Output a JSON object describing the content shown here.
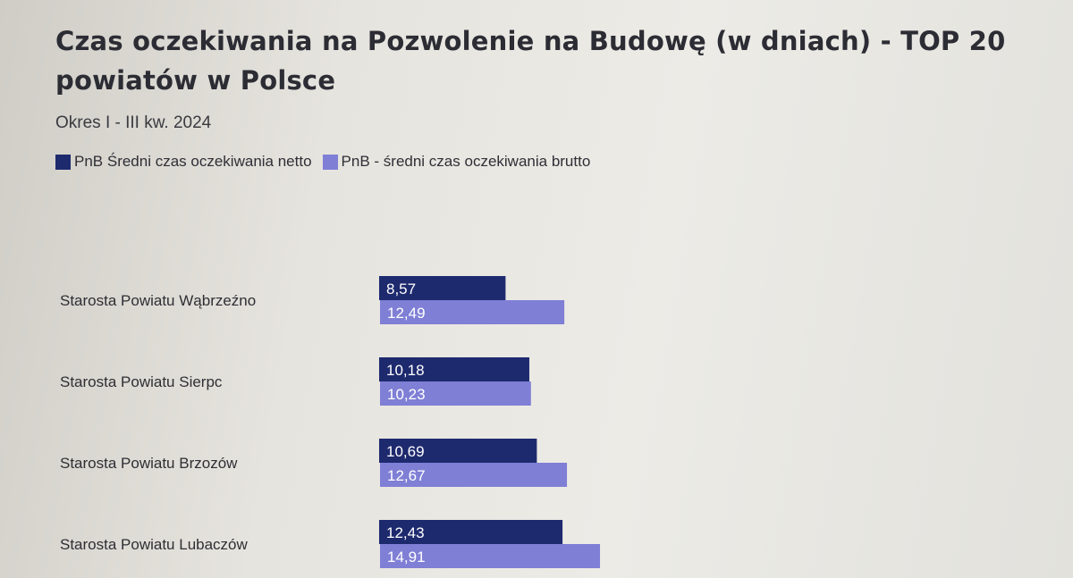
{
  "title": "Czas oczekiwania na Pozwolenie na Budowę (w dniach) - TOP 20 powiatów w Polsce",
  "subtitle": "Okres I - III kw. 2024",
  "colors": {
    "netto": "#1e2a6e",
    "brutto": "#7f7fd6"
  },
  "chart_data": {
    "type": "bar",
    "orientation": "horizontal",
    "title": "Czas oczekiwania na Pozwolenie na Budowę (w dniach) - TOP 20 powiatów w Polsce",
    "subtitle": "Okres I - III kw. 2024",
    "categories": [
      "Starosta Powiatu Wąbrzeźno",
      "Starosta Powiatu Sierpc",
      "Starosta Powiatu Brzozów",
      "Starosta Powiatu Lubaczów"
    ],
    "category_labels": [
      "Starosta Powiatu Wąbrzeźno",
      "Starosta Powiatu Sierpc",
      "Starosta Powiatu Brzozów",
      "Starosta Powiatu Lubaczów"
    ],
    "series": [
      {
        "name": "PnB Średni czas oczekiwania netto",
        "values": [
          8.57,
          10.18,
          10.69,
          12.43
        ],
        "labels": [
          "8,57",
          "10,18",
          "10,69",
          "12,43"
        ]
      },
      {
        "name": "PnB - średni czas oczekiwania brutto",
        "values": [
          12.49,
          10.23,
          12.67,
          14.91
        ],
        "labels": [
          "12,49",
          "10,23",
          "12,67",
          "14,91"
        ]
      }
    ],
    "legend": "top-left",
    "grid": false
  }
}
